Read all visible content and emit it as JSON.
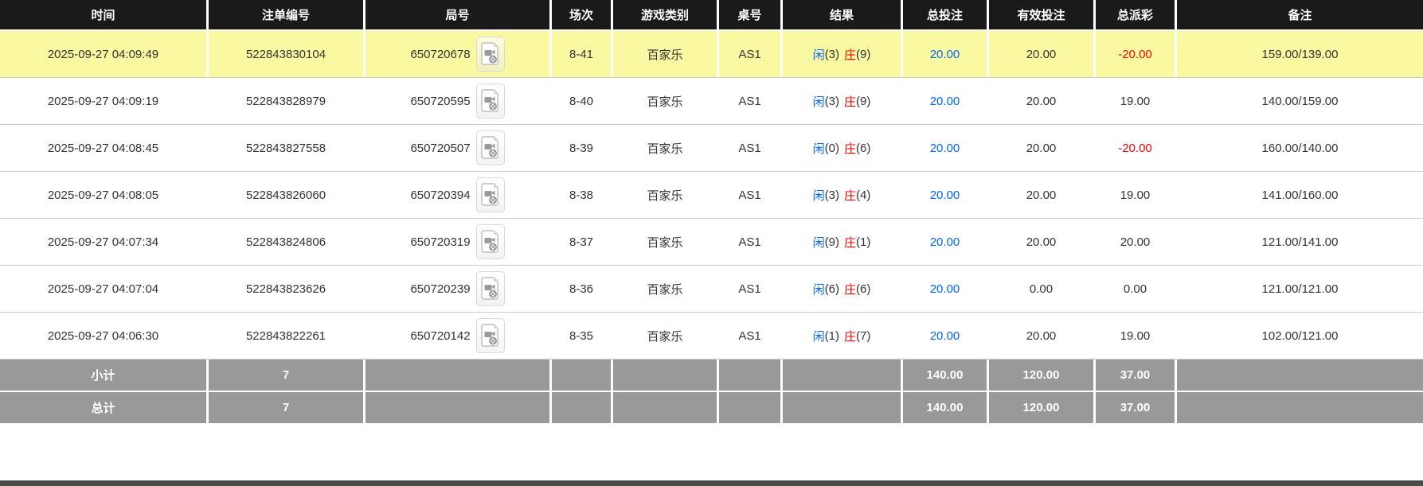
{
  "table": {
    "columns": [
      {
        "key": "time",
        "label": "时间"
      },
      {
        "key": "bet_id",
        "label": "注单编号"
      },
      {
        "key": "round_id",
        "label": "局号"
      },
      {
        "key": "session",
        "label": "场次"
      },
      {
        "key": "game_type",
        "label": "游戏类别"
      },
      {
        "key": "table_no",
        "label": "桌号"
      },
      {
        "key": "result",
        "label": "结果"
      },
      {
        "key": "total_bet",
        "label": "总投注"
      },
      {
        "key": "valid_bet",
        "label": "有效投注"
      },
      {
        "key": "total_payout",
        "label": "总派彩"
      },
      {
        "key": "remark",
        "label": "备注"
      }
    ],
    "rows": [
      {
        "time": "2025-09-27 04:09:49",
        "bet_id": "522843830104",
        "round_id": "650720678",
        "session": "8-41",
        "game_type": "百家乐",
        "table_no": "AS1",
        "result": {
          "player_label": "闲",
          "player_score": "(3)",
          "banker_label": "庄",
          "banker_score": "(9)"
        },
        "total_bet": "20.00",
        "valid_bet": "20.00",
        "total_payout": "-20.00",
        "remark": "159.00/139.00",
        "highlighted": true
      },
      {
        "time": "2025-09-27 04:09:19",
        "bet_id": "522843828979",
        "round_id": "650720595",
        "session": "8-40",
        "game_type": "百家乐",
        "table_no": "AS1",
        "result": {
          "player_label": "闲",
          "player_score": "(3)",
          "banker_label": "庄",
          "banker_score": "(9)"
        },
        "total_bet": "20.00",
        "valid_bet": "20.00",
        "total_payout": "19.00",
        "remark": "140.00/159.00",
        "highlighted": false
      },
      {
        "time": "2025-09-27 04:08:45",
        "bet_id": "522843827558",
        "round_id": "650720507",
        "session": "8-39",
        "game_type": "百家乐",
        "table_no": "AS1",
        "result": {
          "player_label": "闲",
          "player_score": "(0)",
          "banker_label": "庄",
          "banker_score": "(6)"
        },
        "total_bet": "20.00",
        "valid_bet": "20.00",
        "total_payout": "-20.00",
        "remark": "160.00/140.00",
        "highlighted": false
      },
      {
        "time": "2025-09-27 04:08:05",
        "bet_id": "522843826060",
        "round_id": "650720394",
        "session": "8-38",
        "game_type": "百家乐",
        "table_no": "AS1",
        "result": {
          "player_label": "闲",
          "player_score": "(3)",
          "banker_label": "庄",
          "banker_score": "(4)"
        },
        "total_bet": "20.00",
        "valid_bet": "20.00",
        "total_payout": "19.00",
        "remark": "141.00/160.00",
        "highlighted": false
      },
      {
        "time": "2025-09-27 04:07:34",
        "bet_id": "522843824806",
        "round_id": "650720319",
        "session": "8-37",
        "game_type": "百家乐",
        "table_no": "AS1",
        "result": {
          "player_label": "闲",
          "player_score": "(9)",
          "banker_label": "庄",
          "banker_score": "(1)"
        },
        "total_bet": "20.00",
        "valid_bet": "20.00",
        "total_payout": "20.00",
        "remark": "121.00/141.00",
        "highlighted": false
      },
      {
        "time": "2025-09-27 04:07:04",
        "bet_id": "522843823626",
        "round_id": "650720239",
        "session": "8-36",
        "game_type": "百家乐",
        "table_no": "AS1",
        "result": {
          "player_label": "闲",
          "player_score": "(6)",
          "banker_label": "庄",
          "banker_score": "(6)"
        },
        "total_bet": "20.00",
        "valid_bet": "0.00",
        "total_payout": "0.00",
        "remark": "121.00/121.00",
        "highlighted": false
      },
      {
        "time": "2025-09-27 04:06:30",
        "bet_id": "522843822261",
        "round_id": "650720142",
        "session": "8-35",
        "game_type": "百家乐",
        "table_no": "AS1",
        "result": {
          "player_label": "闲",
          "player_score": "(1)",
          "banker_label": "庄",
          "banker_score": "(7)"
        },
        "total_bet": "20.00",
        "valid_bet": "20.00",
        "total_payout": "19.00",
        "remark": "102.00/121.00",
        "highlighted": false
      }
    ],
    "footer_rows": [
      {
        "label": "小计",
        "count": "7",
        "total_bet": "140.00",
        "valid_bet": "120.00",
        "total_payout": "37.00"
      },
      {
        "label": "总计",
        "count": "7",
        "total_bet": "140.00",
        "valid_bet": "120.00",
        "total_payout": "37.00"
      }
    ],
    "icons": {
      "round_icon": "video-replay-icon"
    }
  },
  "colors": {
    "header_bg": "#1a1a1a",
    "highlight_row": "#f9f9a2",
    "footer_bg": "#999999",
    "total_bet_text": "#0066ff",
    "negative_payout_text": "#ff0000",
    "player_text": "#0066ff",
    "banker_text": "#ff0000"
  }
}
